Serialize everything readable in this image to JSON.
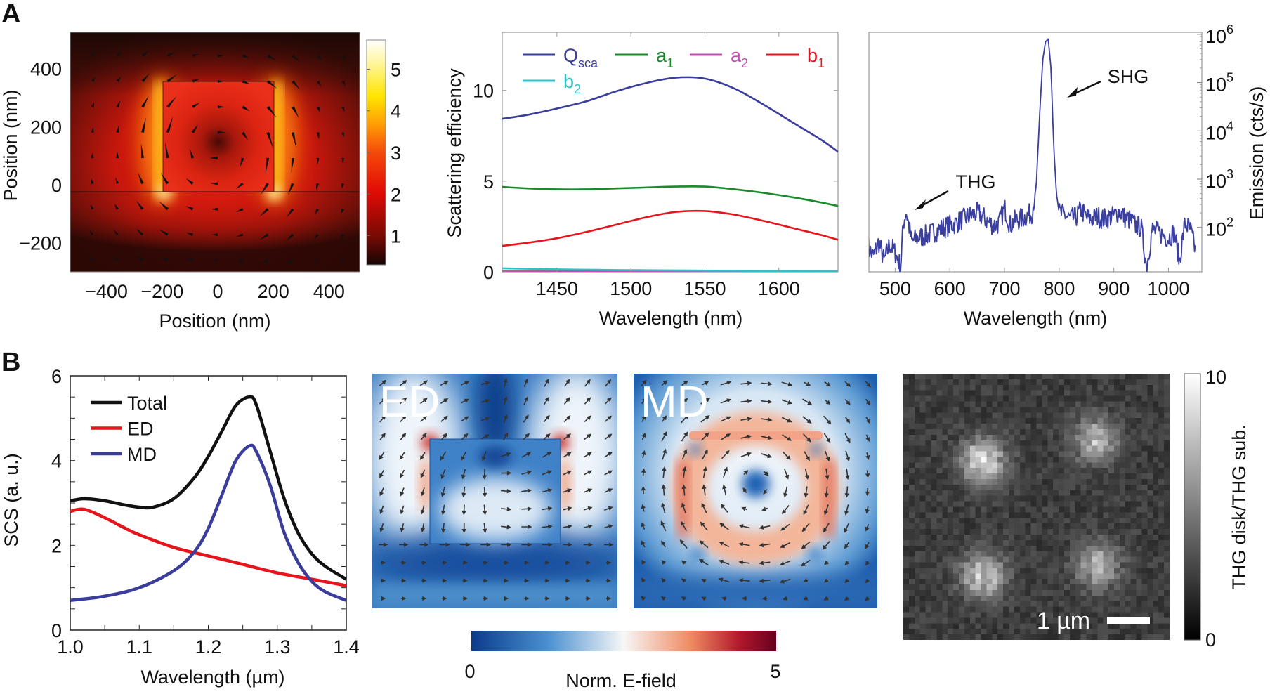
{
  "figure": {
    "panel_labels": [
      "A",
      "B"
    ]
  },
  "chart_data": [
    {
      "id": "A-field-map",
      "type": "heatmap",
      "xlabel": "Position (nm)",
      "ylabel": "Position (nm)",
      "xlim": [
        -530,
        510
      ],
      "ylim": [
        -300,
        525
      ],
      "xticks": [
        -400,
        -200,
        0,
        200,
        400
      ],
      "xtick_labels": [
        "−400",
        "−200",
        "0",
        "200",
        "400"
      ],
      "yticks": [
        -200,
        0,
        200,
        400
      ],
      "ytick_labels": [
        "−200",
        "0",
        "200",
        "400"
      ],
      "structure_x": [
        -200,
        200
      ],
      "structure_y": [
        -22,
        358
      ],
      "colorbar": {
        "range": [
          0.3,
          5.7
        ],
        "ticks": [
          1,
          2,
          3,
          4,
          5
        ],
        "tick_labels": [
          "1",
          "2",
          "3",
          "4",
          "5"
        ]
      }
    },
    {
      "id": "A-scattering",
      "type": "line",
      "xlabel": "Wavelength (nm)",
      "ylabel": "Scattering efficiency",
      "xlim": [
        1413,
        1640
      ],
      "ylim": [
        0,
        13.2
      ],
      "xticks": [
        1450,
        1500,
        1550,
        1600
      ],
      "xtick_labels": [
        "1450",
        "1500",
        "1550",
        "1600"
      ],
      "yticks": [
        0,
        5,
        10
      ],
      "ytick_labels": [
        "0",
        "5",
        "10"
      ],
      "legend_position": "top",
      "x": [
        1410,
        1430,
        1450,
        1470,
        1490,
        1510,
        1530,
        1550,
        1570,
        1590,
        1610,
        1630,
        1647
      ],
      "series": [
        {
          "name": "Q",
          "sub": "sca",
          "color": "#3a3d9a",
          "values": [
            8.4,
            8.65,
            9.0,
            9.4,
            9.95,
            10.4,
            10.7,
            10.65,
            10.1,
            9.2,
            8.2,
            7.2,
            6.2
          ]
        },
        {
          "name": "a",
          "sub": "1",
          "color": "#1a8a2a",
          "values": [
            4.7,
            4.6,
            4.55,
            4.55,
            4.6,
            4.65,
            4.7,
            4.7,
            4.55,
            4.35,
            4.1,
            3.8,
            3.5
          ]
        },
        {
          "name": "a",
          "sub": "2",
          "color": "#c050b0",
          "values": [
            0.02,
            0.02,
            0.02,
            0.02,
            0.02,
            0.02,
            0.02,
            0.02,
            0.02,
            0.02,
            0.02,
            0.02,
            0.02
          ]
        },
        {
          "name": "b",
          "sub": "1",
          "color": "#e8141c",
          "values": [
            1.4,
            1.6,
            1.85,
            2.2,
            2.6,
            3.0,
            3.3,
            3.35,
            3.15,
            2.8,
            2.4,
            2.0,
            1.6
          ]
        },
        {
          "name": "b",
          "sub": "2",
          "color": "#30c0c8",
          "values": [
            0.2,
            0.17,
            0.14,
            0.12,
            0.1,
            0.09,
            0.08,
            0.07,
            0.06,
            0.05,
            0.05,
            0.04,
            0.04
          ]
        }
      ]
    },
    {
      "id": "A-emission",
      "type": "line",
      "yscale": "log",
      "xlabel": "Wavelength (nm)",
      "ylabel": "Emission (cts/s)",
      "xlim": [
        452,
        1061
      ],
      "ylim": [
        12,
        1100000
      ],
      "xticks": [
        500,
        600,
        700,
        800,
        900,
        1000
      ],
      "xtick_labels": [
        "500",
        "600",
        "700",
        "800",
        "900",
        "1000"
      ],
      "ytick_base": "10",
      "ytick_exponents": [
        "2",
        "3",
        "4",
        "5",
        "6"
      ],
      "color": "#3a3fa0",
      "x": [
        450,
        460,
        470,
        480,
        490,
        500,
        510,
        515,
        520,
        525,
        530,
        540,
        550,
        560,
        570,
        580,
        590,
        600,
        610,
        620,
        630,
        640,
        650,
        660,
        670,
        680,
        690,
        700,
        705,
        710,
        720,
        730,
        740,
        750,
        758,
        765,
        770,
        775,
        780,
        785,
        790,
        795,
        800,
        810,
        820,
        830,
        840,
        850,
        860,
        870,
        880,
        890,
        900,
        910,
        920,
        930,
        940,
        950,
        960,
        970,
        980,
        990,
        1000,
        1010,
        1020,
        1030,
        1040,
        1050
      ],
      "y": [
        40,
        25,
        50,
        20,
        45,
        30,
        15,
        120,
        220,
        110,
        50,
        60,
        65,
        70,
        80,
        90,
        100,
        110,
        120,
        140,
        160,
        180,
        200,
        170,
        130,
        110,
        120,
        250,
        180,
        110,
        140,
        150,
        170,
        200,
        700,
        30000,
        300000,
        700000,
        800000,
        200000,
        5000,
        500,
        200,
        180,
        150,
        160,
        230,
        160,
        150,
        170,
        150,
        160,
        170,
        220,
        160,
        140,
        110,
        100,
        15,
        90,
        80,
        70,
        60,
        80,
        20,
        120,
        90,
        30
      ],
      "annotations": [
        {
          "text": "THG",
          "x": 520
        },
        {
          "text": "SHG",
          "x": 790
        }
      ]
    },
    {
      "id": "B-scs",
      "type": "line",
      "xlabel": "Wavelength (µm)",
      "ylabel": "SCS (a. u.)",
      "xlim": [
        1.0,
        1.4
      ],
      "ylim": [
        0,
        6
      ],
      "xticks": [
        1.0,
        1.1,
        1.2,
        1.3,
        1.4
      ],
      "xtick_labels": [
        "1.0",
        "1.1",
        "1.2",
        "1.3",
        "1.4"
      ],
      "yticks": [
        0,
        2,
        4,
        6
      ],
      "ytick_labels": [
        "0",
        "2",
        "4",
        "6"
      ],
      "legend_position": "top-left",
      "series": [
        {
          "name": "Total",
          "color": "#111111",
          "x": [
            1.0,
            1.02,
            1.05,
            1.08,
            1.1,
            1.12,
            1.15,
            1.18,
            1.2,
            1.22,
            1.24,
            1.26,
            1.27,
            1.29,
            1.31,
            1.33,
            1.35,
            1.37,
            1.4
          ],
          "values": [
            3.05,
            3.1,
            3.05,
            2.95,
            2.9,
            2.9,
            3.1,
            3.6,
            4.1,
            4.7,
            5.3,
            5.5,
            5.3,
            4.2,
            3.1,
            2.3,
            1.8,
            1.5,
            1.2
          ]
        },
        {
          "name": "ED",
          "color": "#e8141c",
          "x": [
            1.0,
            1.02,
            1.05,
            1.08,
            1.1,
            1.15,
            1.2,
            1.25,
            1.3,
            1.35,
            1.4
          ],
          "values": [
            2.8,
            2.85,
            2.65,
            2.4,
            2.25,
            1.95,
            1.75,
            1.55,
            1.35,
            1.2,
            1.05
          ]
        },
        {
          "name": "MD",
          "color": "#3a3d9a",
          "x": [
            1.0,
            1.05,
            1.1,
            1.15,
            1.18,
            1.2,
            1.22,
            1.24,
            1.26,
            1.27,
            1.29,
            1.31,
            1.33,
            1.35,
            1.37,
            1.4
          ],
          "values": [
            0.7,
            0.8,
            1.0,
            1.4,
            1.85,
            2.4,
            3.2,
            4.0,
            4.35,
            4.2,
            3.4,
            2.3,
            1.6,
            1.15,
            0.9,
            0.7
          ]
        }
      ]
    },
    {
      "id": "B-field-maps",
      "type": "heatmap",
      "maps": [
        {
          "label": "ED"
        },
        {
          "label": "MD"
        }
      ],
      "colorbar": {
        "label": "Norm. E-field",
        "range": [
          0,
          5
        ],
        "tick_labels": [
          "0",
          "5"
        ],
        "colors": [
          "#0b3b8c",
          "#4a90d0",
          "#f7f7f7",
          "#ef8a62",
          "#b2182b",
          "#67001f"
        ]
      }
    },
    {
      "id": "B-thg-image",
      "type": "heatmap",
      "colorbar": {
        "label": "THG disk/THG sub.",
        "range": [
          0,
          10
        ],
        "tick_labels": [
          "10",
          "0"
        ]
      },
      "scale_bar": "1 µm"
    }
  ]
}
